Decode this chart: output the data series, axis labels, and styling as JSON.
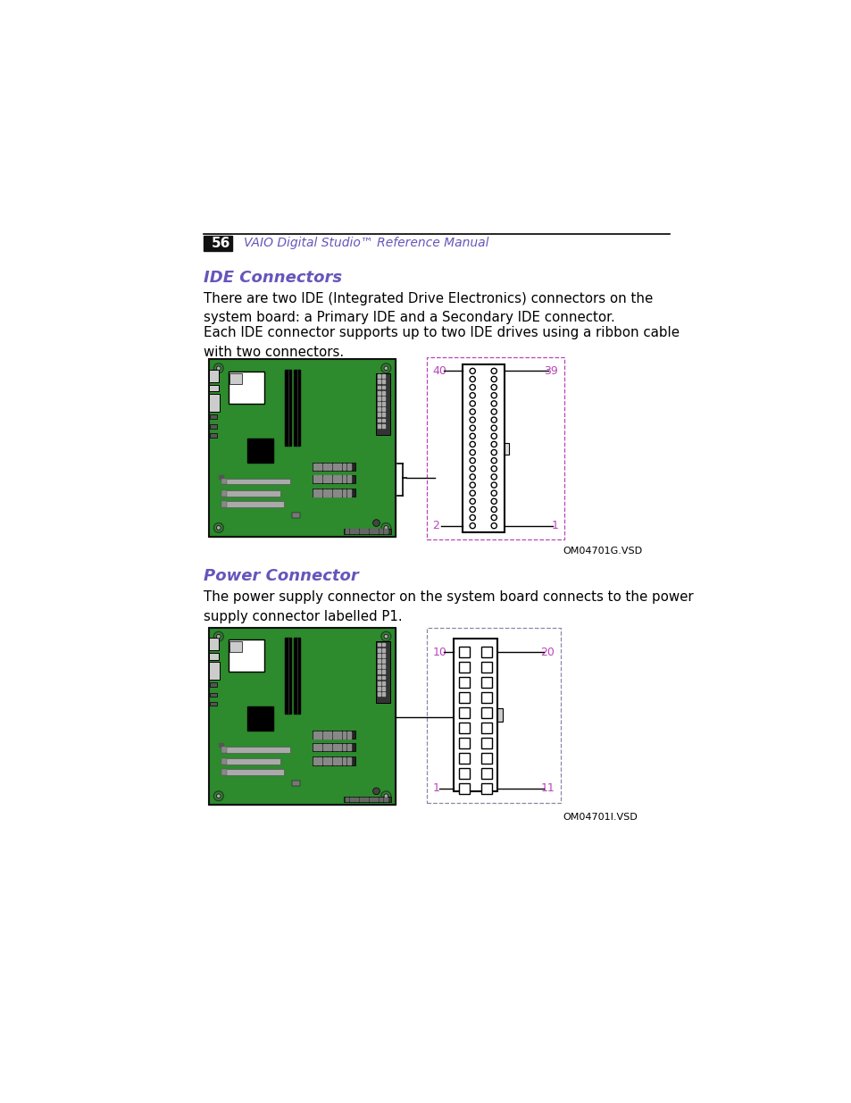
{
  "bg_color": "#ffffff",
  "header_bar_color": "#111111",
  "page_number": "56",
  "header_text": "VAIO Digital Studio™ Reference Manual",
  "header_text_color": "#6655bb",
  "section1_title": "IDE Connectors",
  "section1_title_color": "#6655bb",
  "section1_para1": "There are two IDE (Integrated Drive Electronics) connectors on the\nsystem board: a Primary IDE and a Secondary IDE connector.",
  "section1_para2": "Each IDE connector supports up to two IDE drives using a ribbon cable\nwith two connectors.",
  "section2_title": "Power Connector",
  "section2_title_color": "#6655bb",
  "section2_para1": "The power supply connector on the system board connects to the power\nsupply connector labelled P1.",
  "ide_label1": "40",
  "ide_label2": "39",
  "ide_label3": "2",
  "ide_label4": "1",
  "pin_label_color": "#bb44bb",
  "ide_caption": "OM04701G.VSD",
  "power_label1": "10",
  "power_label2": "20",
  "power_label3": "1",
  "power_label4": "11",
  "power_caption": "OM04701I.VSD",
  "board_color": "#2d8a2d",
  "board_dark": "#226622",
  "board_border": "#111111",
  "ide_box_color": "#bb44bb",
  "pwr_box_color": "#8888aa"
}
